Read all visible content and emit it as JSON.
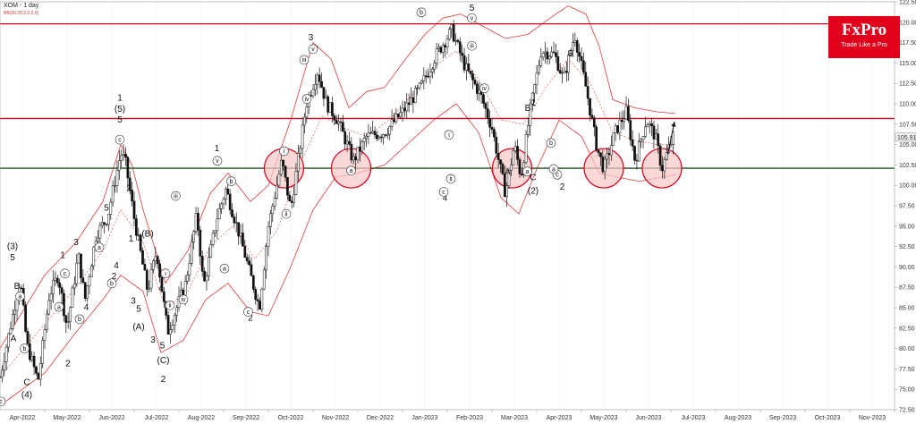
{
  "header": {
    "symbol": "XOM",
    "timeframe": "1 day",
    "indicator": "BB(20,20,2,0,2,0)"
  },
  "logo": {
    "name": "FxPro",
    "tagline": "Trade Like a Pro"
  },
  "colors": {
    "resistance": "#e0001b",
    "support": "#1a4d1a",
    "band": "#e03a3a",
    "candle": "#111111",
    "circle_fill": "#f8c8c8"
  },
  "chart_data": {
    "type": "candlestick",
    "ylim": [
      72.5,
      122.5
    ],
    "yticks": [
      "72.50",
      "75.00",
      "77.50",
      "80.00",
      "82.50",
      "85.00",
      "87.50",
      "90.00",
      "92.50",
      "95.00",
      "97.50",
      "100.00",
      "102.50",
      "105.00",
      "107.50",
      "110.00",
      "112.50",
      "115.00",
      "117.50",
      "120.00",
      "122.50"
    ],
    "current_price": "105.91",
    "xticks": [
      "Apr-2022",
      "May-2022",
      "Jun-2022",
      "Jul-2022",
      "Aug-2022",
      "Sep-2022",
      "Oct-2022",
      "Nov-2022",
      "Dec-2022",
      "Jan-2023",
      "Feb-2023",
      "Mar-2023",
      "Apr-2023",
      "May-2023",
      "Jun-2023",
      "Jul-2023",
      "Aug-2023",
      "Sep-2023",
      "Oct-2023",
      "Nov-2023"
    ],
    "hlines": [
      {
        "name": "resistance-top",
        "value": 119.8
      },
      {
        "name": "resistance-mid",
        "value": 108.2
      },
      {
        "name": "support",
        "value": 102.1
      }
    ],
    "price_path": [
      {
        "m": 0.0,
        "p": 76.5
      },
      {
        "m": 0.3,
        "p": 84.5
      },
      {
        "m": 0.45,
        "p": 88.5
      },
      {
        "m": 0.6,
        "p": 80.5
      },
      {
        "m": 0.85,
        "p": 76.0
      },
      {
        "m": 1.1,
        "p": 86.5
      },
      {
        "m": 1.3,
        "p": 89.0
      },
      {
        "m": 1.5,
        "p": 82.5
      },
      {
        "m": 1.75,
        "p": 91.5
      },
      {
        "m": 1.9,
        "p": 86.0
      },
      {
        "m": 2.15,
        "p": 94.0
      },
      {
        "m": 2.4,
        "p": 96.0
      },
      {
        "m": 2.7,
        "p": 104.0
      },
      {
        "m": 2.8,
        "p": 103.0
      },
      {
        "m": 3.0,
        "p": 96.0
      },
      {
        "m": 3.3,
        "p": 87.0
      },
      {
        "m": 3.5,
        "p": 92.0
      },
      {
        "m": 3.75,
        "p": 82.0
      },
      {
        "m": 3.95,
        "p": 85.0
      },
      {
        "m": 4.15,
        "p": 88.0
      },
      {
        "m": 4.4,
        "p": 96.5
      },
      {
        "m": 4.55,
        "p": 87.5
      },
      {
        "m": 4.85,
        "p": 96.0
      },
      {
        "m": 5.05,
        "p": 99.5
      },
      {
        "m": 5.35,
        "p": 94.0
      },
      {
        "m": 5.6,
        "p": 89.0
      },
      {
        "m": 5.8,
        "p": 85.0
      },
      {
        "m": 6.0,
        "p": 95.0
      },
      {
        "m": 6.3,
        "p": 103.0
      },
      {
        "m": 6.5,
        "p": 97.0
      },
      {
        "m": 6.85,
        "p": 110.0
      },
      {
        "m": 7.1,
        "p": 114.0
      },
      {
        "m": 7.3,
        "p": 110.0
      },
      {
        "m": 7.55,
        "p": 108.0
      },
      {
        "m": 7.9,
        "p": 103.0
      },
      {
        "m": 8.2,
        "p": 106.0
      },
      {
        "m": 8.6,
        "p": 106.5
      },
      {
        "m": 9.0,
        "p": 109.0
      },
      {
        "m": 9.4,
        "p": 112.0
      },
      {
        "m": 9.75,
        "p": 116.0
      },
      {
        "m": 10.1,
        "p": 119.0
      },
      {
        "m": 10.4,
        "p": 114.5
      },
      {
        "m": 10.75,
        "p": 111.0
      },
      {
        "m": 11.0,
        "p": 107.0
      },
      {
        "m": 11.3,
        "p": 99.0
      },
      {
        "m": 11.5,
        "p": 105.0
      },
      {
        "m": 11.65,
        "p": 101.0
      },
      {
        "m": 11.85,
        "p": 109.0
      },
      {
        "m": 12.1,
        "p": 116.5
      },
      {
        "m": 12.4,
        "p": 116.0
      },
      {
        "m": 12.6,
        "p": 113.0
      },
      {
        "m": 12.85,
        "p": 118.5
      },
      {
        "m": 13.1,
        "p": 112.0
      },
      {
        "m": 13.35,
        "p": 104.5
      },
      {
        "m": 13.5,
        "p": 102.0
      },
      {
        "m": 13.75,
        "p": 106.5
      },
      {
        "m": 14.0,
        "p": 109.0
      },
      {
        "m": 14.2,
        "p": 103.0
      },
      {
        "m": 14.45,
        "p": 108.0
      },
      {
        "m": 14.65,
        "p": 106.0
      },
      {
        "m": 14.8,
        "p": 102.0
      },
      {
        "m": 14.95,
        "p": 104.5
      },
      {
        "m": 15.05,
        "p": 105.9
      }
    ],
    "bollinger": {
      "upper": [
        {
          "m": 0.0,
          "p": 80.0
        },
        {
          "m": 1.0,
          "p": 89.0
        },
        {
          "m": 1.7,
          "p": 93.0
        },
        {
          "m": 2.3,
          "p": 98.0
        },
        {
          "m": 2.7,
          "p": 105.0
        },
        {
          "m": 2.95,
          "p": 102.5
        },
        {
          "m": 3.2,
          "p": 97.0
        },
        {
          "m": 3.7,
          "p": 88.0
        },
        {
          "m": 4.2,
          "p": 92.0
        },
        {
          "m": 4.7,
          "p": 99.0
        },
        {
          "m": 5.1,
          "p": 101.5
        },
        {
          "m": 5.6,
          "p": 98.0
        },
        {
          "m": 6.0,
          "p": 100.0
        },
        {
          "m": 6.5,
          "p": 108.0
        },
        {
          "m": 7.0,
          "p": 117.5
        },
        {
          "m": 7.4,
          "p": 115.5
        },
        {
          "m": 7.8,
          "p": 109.5
        },
        {
          "m": 8.2,
          "p": 111.5
        },
        {
          "m": 8.6,
          "p": 112.0
        },
        {
          "m": 9.0,
          "p": 115.0
        },
        {
          "m": 9.5,
          "p": 118.5
        },
        {
          "m": 9.9,
          "p": 120.5
        },
        {
          "m": 10.3,
          "p": 121.0
        },
        {
          "m": 10.8,
          "p": 119.5
        },
        {
          "m": 11.3,
          "p": 118.0
        },
        {
          "m": 11.8,
          "p": 118.5
        },
        {
          "m": 12.3,
          "p": 120.5
        },
        {
          "m": 12.7,
          "p": 122.0
        },
        {
          "m": 13.1,
          "p": 121.0
        },
        {
          "m": 13.4,
          "p": 117.0
        },
        {
          "m": 13.7,
          "p": 110.5
        },
        {
          "m": 14.2,
          "p": 109.5
        },
        {
          "m": 14.7,
          "p": 109.0
        },
        {
          "m": 15.1,
          "p": 108.8
        }
      ],
      "middle": [
        {
          "m": 0.0,
          "p": 76.5
        },
        {
          "m": 1.0,
          "p": 83.0
        },
        {
          "m": 1.7,
          "p": 87.5
        },
        {
          "m": 2.3,
          "p": 92.0
        },
        {
          "m": 2.7,
          "p": 97.0
        },
        {
          "m": 3.2,
          "p": 93.0
        },
        {
          "m": 3.7,
          "p": 85.0
        },
        {
          "m": 4.2,
          "p": 87.0
        },
        {
          "m": 4.7,
          "p": 92.5
        },
        {
          "m": 5.2,
          "p": 95.0
        },
        {
          "m": 5.7,
          "p": 91.0
        },
        {
          "m": 6.2,
          "p": 94.5
        },
        {
          "m": 6.7,
          "p": 102.5
        },
        {
          "m": 7.2,
          "p": 108.5
        },
        {
          "m": 7.7,
          "p": 107.0
        },
        {
          "m": 8.2,
          "p": 106.0
        },
        {
          "m": 8.7,
          "p": 108.0
        },
        {
          "m": 9.2,
          "p": 111.0
        },
        {
          "m": 9.7,
          "p": 114.5
        },
        {
          "m": 10.2,
          "p": 116.5
        },
        {
          "m": 10.7,
          "p": 113.0
        },
        {
          "m": 11.2,
          "p": 108.0
        },
        {
          "m": 11.7,
          "p": 107.5
        },
        {
          "m": 12.2,
          "p": 112.0
        },
        {
          "m": 12.7,
          "p": 115.5
        },
        {
          "m": 13.2,
          "p": 112.5
        },
        {
          "m": 13.7,
          "p": 106.5
        },
        {
          "m": 14.2,
          "p": 105.5
        },
        {
          "m": 14.7,
          "p": 105.0
        },
        {
          "m": 15.1,
          "p": 105.0
        }
      ],
      "lower": [
        {
          "m": 0.0,
          "p": 73.0
        },
        {
          "m": 1.0,
          "p": 77.0
        },
        {
          "m": 1.7,
          "p": 82.0
        },
        {
          "m": 2.3,
          "p": 86.0
        },
        {
          "m": 2.7,
          "p": 89.0
        },
        {
          "m": 3.2,
          "p": 87.0
        },
        {
          "m": 3.6,
          "p": 79.5
        },
        {
          "m": 4.1,
          "p": 81.0
        },
        {
          "m": 4.6,
          "p": 86.0
        },
        {
          "m": 5.1,
          "p": 88.0
        },
        {
          "m": 5.6,
          "p": 84.5
        },
        {
          "m": 6.0,
          "p": 84.0
        },
        {
          "m": 6.5,
          "p": 90.0
        },
        {
          "m": 7.0,
          "p": 97.0
        },
        {
          "m": 7.5,
          "p": 101.0
        },
        {
          "m": 8.0,
          "p": 101.5
        },
        {
          "m": 8.6,
          "p": 102.5
        },
        {
          "m": 9.2,
          "p": 105.5
        },
        {
          "m": 9.7,
          "p": 108.0
        },
        {
          "m": 10.2,
          "p": 110.0
        },
        {
          "m": 10.7,
          "p": 106.5
        },
        {
          "m": 11.2,
          "p": 98.5
        },
        {
          "m": 11.6,
          "p": 96.5
        },
        {
          "m": 12.0,
          "p": 102.0
        },
        {
          "m": 12.5,
          "p": 108.0
        },
        {
          "m": 13.0,
          "p": 106.0
        },
        {
          "m": 13.4,
          "p": 101.5
        },
        {
          "m": 13.8,
          "p": 101.0
        },
        {
          "m": 14.3,
          "p": 100.5
        },
        {
          "m": 14.8,
          "p": 101.0
        },
        {
          "m": 15.1,
          "p": 101.3
        }
      ]
    },
    "highlight_circles": [
      {
        "m": 6.35,
        "p": 102.1
      },
      {
        "m": 7.85,
        "p": 102.1
      },
      {
        "m": 11.45,
        "p": 102.1
      },
      {
        "m": 13.5,
        "p": 102.1
      },
      {
        "m": 14.8,
        "p": 102.1
      }
    ],
    "arrow": {
      "from_m": 14.93,
      "from_p": 103.8,
      "to_m": 15.08,
      "to_p": 107.8
    },
    "wave_labels": [
      {
        "text": "(3)",
        "m": 0.28,
        "p": 92.2
      },
      {
        "text": "5",
        "m": 0.28,
        "p": 90.8
      },
      {
        "text": "B",
        "m": 0.38,
        "p": 87.3
      },
      {
        "text": "A",
        "m": 0.3,
        "p": 80.9
      },
      {
        "text": "C",
        "m": 0.6,
        "p": 75.5
      },
      {
        "text": "(4)",
        "m": 0.6,
        "p": 74.0
      },
      {
        "text": "1",
        "m": 1.4,
        "p": 91.1
      },
      {
        "text": "3",
        "m": 1.7,
        "p": 92.7
      },
      {
        "text": "2",
        "m": 1.52,
        "p": 77.8
      },
      {
        "text": "4",
        "m": 1.93,
        "p": 84.7
      },
      {
        "text": "5",
        "m": 2.38,
        "p": 96.9
      },
      {
        "text": "2",
        "m": 2.55,
        "p": 88.5
      },
      {
        "text": "4",
        "m": 2.6,
        "p": 89.8
      },
      {
        "text": "1",
        "m": 2.68,
        "p": 110.4
      },
      {
        "text": "(5)",
        "m": 2.68,
        "p": 109.0
      },
      {
        "text": "5",
        "m": 2.68,
        "p": 107.7
      },
      {
        "text": "2",
        "m": 2.88,
        "p": 99.3
      },
      {
        "text": "1",
        "m": 2.93,
        "p": 93.1
      },
      {
        "text": "4",
        "m": 3.13,
        "p": 93.1
      },
      {
        "text": "(B)",
        "m": 3.3,
        "p": 93.7
      },
      {
        "text": "3",
        "m": 2.98,
        "p": 85.5
      },
      {
        "text": "5",
        "m": 3.1,
        "p": 84.5
      },
      {
        "text": "(A)",
        "m": 3.1,
        "p": 82.3
      },
      {
        "text": "3",
        "m": 3.42,
        "p": 80.7
      },
      {
        "text": "5",
        "m": 3.63,
        "p": 80.0
      },
      {
        "text": "(C)",
        "m": 3.65,
        "p": 78.2
      },
      {
        "text": "2",
        "m": 3.65,
        "p": 75.9
      },
      {
        "text": "4",
        "m": 3.6,
        "p": 87.1
      },
      {
        "text": "1",
        "m": 4.85,
        "p": 104.2
      },
      {
        "text": "2",
        "m": 5.6,
        "p": 83.4
      },
      {
        "text": "3",
        "m": 6.95,
        "p": 117.8
      },
      {
        "text": "5",
        "m": 10.55,
        "p": 121.4
      },
      {
        "text": "4",
        "m": 9.95,
        "p": 98.1
      },
      {
        "text": "A",
        "m": 11.35,
        "p": 101.3
      },
      {
        "text": "B",
        "m": 11.8,
        "p": 109.1
      },
      {
        "text": "1",
        "m": 11.93,
        "p": 109.8
      },
      {
        "text": "C",
        "m": 11.92,
        "p": 100.6
      },
      {
        "text": "(2)",
        "m": 11.92,
        "p": 99.0
      },
      {
        "text": "2",
        "m": 12.57,
        "p": 99.5
      },
      {
        "text": "3",
        "m": 12.75,
        "p": 115.8
      }
    ],
    "circled_labels": [
      {
        "text": "c",
        "m": 0.02,
        "p": 73.5
      },
      {
        "text": "a",
        "m": 0.45,
        "p": 86.4
      },
      {
        "text": "b",
        "m": 0.55,
        "p": 80.0
      },
      {
        "text": "c",
        "m": 1.45,
        "p": 89.2
      },
      {
        "text": "a",
        "m": 1.32,
        "p": 85.1
      },
      {
        "text": "b",
        "m": 1.78,
        "p": 83.6
      },
      {
        "text": "a",
        "m": 2.22,
        "p": 92.4
      },
      {
        "text": "c",
        "m": 2.68,
        "p": 105.6
      },
      {
        "text": "b",
        "m": 2.5,
        "p": 88.0
      },
      {
        "text": "i",
        "m": 3.7,
        "p": 89.2
      },
      {
        "text": "ii",
        "m": 3.8,
        "p": 85.3
      },
      {
        "text": "iii",
        "m": 3.93,
        "p": 98.7
      },
      {
        "text": "iv",
        "m": 4.1,
        "p": 86.0
      },
      {
        "text": "v",
        "m": 4.86,
        "p": 103.0
      },
      {
        "text": "a",
        "m": 5.02,
        "p": 89.8
      },
      {
        "text": "b",
        "m": 5.17,
        "p": 100.5
      },
      {
        "text": "c",
        "m": 5.55,
        "p": 84.5
      },
      {
        "text": "i",
        "m": 6.35,
        "p": 104.2
      },
      {
        "text": "ii",
        "m": 6.4,
        "p": 96.5
      },
      {
        "text": "iii",
        "m": 6.8,
        "p": 115.4
      },
      {
        "text": "iv",
        "m": 6.86,
        "p": 110.6
      },
      {
        "text": "v",
        "m": 7.0,
        "p": 116.7
      },
      {
        "text": "a",
        "m": 7.85,
        "p": 101.8
      },
      {
        "text": "b",
        "m": 9.42,
        "p": 121.2
      },
      {
        "text": "c",
        "m": 9.92,
        "p": 99.2
      },
      {
        "text": "iii",
        "m": 10.55,
        "p": 117.1
      },
      {
        "text": "iv",
        "m": 10.83,
        "p": 111.9
      },
      {
        "text": "v",
        "m": 10.55,
        "p": 120.5
      },
      {
        "text": "i",
        "m": 10.04,
        "p": 106.2
      },
      {
        "text": "ii",
        "m": 10.08,
        "p": 100.8
      },
      {
        "text": "a",
        "m": 11.79,
        "p": 101.7
      },
      {
        "text": "b",
        "m": 12.32,
        "p": 105.2
      },
      {
        "text": "c",
        "m": 12.46,
        "p": 101.3
      },
      {
        "text": "a",
        "m": 12.38,
        "p": 102.0
      }
    ]
  }
}
